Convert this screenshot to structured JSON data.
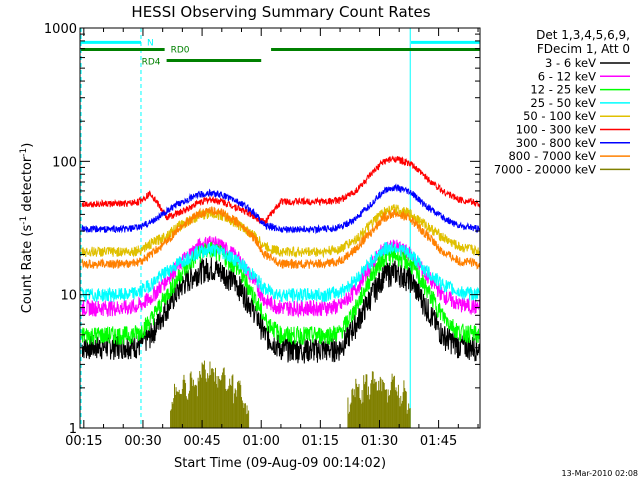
{
  "chart_data": {
    "type": "line",
    "title": "HESSI Observing Summary Count Rates",
    "xlabel": "Start Time (09-Aug-09 00:14:02)",
    "ylabel_parts": [
      "Count Rate (s",
      "-1",
      " detector",
      "-1",
      ")"
    ],
    "y_scale": "log",
    "ylim": [
      1,
      1000
    ],
    "xlim_min": [
      14.03,
      115.5
    ],
    "grid": false,
    "legend_position": "top-right, outside plot",
    "y_ticks": [
      {
        "value": 1,
        "label": "1"
      },
      {
        "value": 10,
        "label": "10"
      },
      {
        "value": 100,
        "label": "100"
      },
      {
        "value": 1000,
        "label": "1000"
      }
    ],
    "x_ticks": [
      {
        "value": 15,
        "label": "00:15"
      },
      {
        "value": 30,
        "label": "00:30"
      },
      {
        "value": 45,
        "label": "00:45"
      },
      {
        "value": 60,
        "label": "01:00"
      },
      {
        "value": 75,
        "label": "01:15"
      },
      {
        "value": 90,
        "label": "01:30"
      },
      {
        "value": 105,
        "label": "01:45"
      }
    ],
    "legend_header": [
      "Det 1,3,4,5,6,9,",
      "FDecim 1, Att 0"
    ],
    "series": [
      {
        "name": "3 - 6 keV",
        "color": "#000000",
        "x": [
          14.5,
          20,
          26,
          29,
          32,
          36,
          40,
          44,
          47,
          50,
          54,
          58,
          61,
          65,
          70,
          76,
          80,
          84,
          88,
          91,
          94,
          98,
          102,
          106,
          110,
          115.5
        ],
        "values": [
          4.1,
          4.1,
          4.2,
          4.2,
          5.0,
          8.0,
          12,
          15,
          16,
          15,
          12,
          8,
          5.0,
          4.0,
          3.9,
          3.9,
          4.0,
          6.0,
          10,
          14,
          15,
          13,
          8,
          5.0,
          4.2,
          4.0
        ]
      },
      {
        "name": "6 - 12 keV",
        "color": "#ff00ff",
        "x": [
          14.5,
          20,
          26,
          29,
          32,
          36,
          40,
          44,
          47,
          50,
          54,
          58,
          61,
          65,
          70,
          76,
          80,
          84,
          88,
          91,
          94,
          98,
          102,
          106,
          110,
          115.5
        ],
        "values": [
          8.0,
          8.0,
          8.0,
          8.3,
          9.5,
          13,
          18,
          23,
          25,
          23,
          19,
          13,
          9.0,
          8.0,
          8.0,
          8.0,
          8.2,
          11,
          17,
          22,
          23,
          20,
          14,
          10,
          8.5,
          8.0
        ]
      },
      {
        "name": "12 - 25 keV",
        "color": "#00ff00",
        "x": [
          14.5,
          20,
          26,
          29,
          32,
          36,
          40,
          44,
          47,
          50,
          54,
          58,
          61,
          65,
          70,
          76,
          80,
          84,
          88,
          91,
          94,
          98,
          102,
          106,
          110,
          115.5
        ],
        "values": [
          5.0,
          5.0,
          5.0,
          5.2,
          6.5,
          10,
          15,
          20,
          22,
          20,
          16,
          10,
          6.5,
          5.0,
          5.0,
          5.0,
          5.2,
          8.0,
          14,
          19,
          20,
          17,
          11,
          7.0,
          5.3,
          5.0
        ]
      },
      {
        "name": "25 - 50 keV",
        "color": "#00ffff",
        "x": [
          14.5,
          20,
          26,
          29,
          32,
          36,
          40,
          44,
          47,
          50,
          54,
          58,
          61,
          65,
          70,
          76,
          80,
          84,
          88,
          91,
          94,
          98,
          102,
          106,
          110,
          115.5
        ],
        "values": [
          10,
          10,
          10,
          10.5,
          12,
          15,
          18,
          21,
          22,
          21,
          18,
          14,
          11,
          10,
          10,
          10,
          10.5,
          13,
          18,
          22,
          23,
          20,
          15,
          12,
          10.5,
          10
        ]
      },
      {
        "name": "50 - 100 keV",
        "color": "#e0c000",
        "x": [
          14.5,
          20,
          26,
          29,
          32,
          36,
          40,
          44,
          47,
          50,
          54,
          58,
          61,
          65,
          70,
          76,
          80,
          84,
          88,
          91,
          94,
          98,
          102,
          106,
          110,
          115.5
        ],
        "values": [
          21,
          21,
          21,
          21.5,
          24,
          28,
          34,
          39,
          41,
          39,
          34,
          28,
          23,
          21,
          21,
          21,
          22,
          26,
          34,
          42,
          44,
          40,
          33,
          27,
          23,
          21
        ]
      },
      {
        "name": "100 - 300 keV",
        "color": "#ff0000",
        "x": [
          14.5,
          20,
          26,
          29,
          32,
          36,
          40,
          44,
          47,
          50,
          54,
          58,
          61,
          65,
          70,
          76,
          80,
          84,
          88,
          91,
          94,
          98,
          102,
          106,
          110,
          115.5
        ],
        "values": [
          48,
          48,
          48,
          50,
          58,
          38,
          42,
          49,
          52,
          50,
          45,
          39,
          35,
          50,
          50,
          50,
          51,
          60,
          80,
          100,
          105,
          95,
          75,
          60,
          52,
          48
        ]
      },
      {
        "name": "300 - 800 keV",
        "color": "#0000ff",
        "x": [
          14.5,
          20,
          26,
          29,
          32,
          36,
          40,
          44,
          47,
          50,
          54,
          58,
          61,
          65,
          70,
          76,
          80,
          84,
          88,
          91,
          94,
          98,
          102,
          106,
          110,
          115.5
        ],
        "values": [
          31,
          31,
          31,
          32,
          35,
          42,
          50,
          56,
          58,
          56,
          50,
          42,
          33,
          31,
          31,
          31,
          32,
          37,
          48,
          60,
          64,
          58,
          46,
          38,
          33,
          31
        ]
      },
      {
        "name": "800 - 7000 keV",
        "color": "#ff8000",
        "x": [
          14.5,
          20,
          26,
          29,
          32,
          36,
          40,
          44,
          47,
          50,
          54,
          58,
          61,
          65,
          70,
          76,
          80,
          84,
          88,
          91,
          94,
          98,
          102,
          106,
          110,
          115.5
        ],
        "values": [
          17,
          17,
          17,
          17.5,
          20,
          25,
          33,
          40,
          43,
          41,
          35,
          27,
          20,
          17,
          17,
          17,
          18,
          22,
          30,
          38,
          41,
          37,
          28,
          21,
          18,
          17
        ]
      },
      {
        "name": "7000 - 20000 keV",
        "color": "#808000",
        "x": [
          37,
          38,
          39,
          40,
          41,
          42,
          43,
          44,
          45,
          46,
          47,
          48,
          49,
          50,
          51,
          52,
          53,
          54,
          55,
          56,
          82,
          83,
          84,
          85,
          86,
          87,
          88,
          89,
          90,
          91,
          92,
          93,
          94,
          95,
          96,
          97
        ],
        "values": [
          1.5,
          2.0,
          1.8,
          2.2,
          1.7,
          2.4,
          2.0,
          2.6,
          2.9,
          2.3,
          2.9,
          2.5,
          2.2,
          2.6,
          1.9,
          2.3,
          1.8,
          2.1,
          1.6,
          1.4,
          1.5,
          1.8,
          2.1,
          1.7,
          2.3,
          1.9,
          2.4,
          2.0,
          2.2,
          2.1,
          1.8,
          2.3,
          1.9,
          1.7,
          2.0,
          1.5
        ]
      }
    ],
    "annotations": [
      {
        "label": "N",
        "color": "#00ffff",
        "segments": [
          [
            14.3,
            29.5
          ],
          [
            98,
            115.5
          ]
        ],
        "level": 780
      },
      {
        "label": "RD0",
        "color": "#008000",
        "segments": [
          [
            14.3,
            35.5
          ],
          [
            62.5,
            115.5
          ]
        ],
        "level": 690
      },
      {
        "label": "RD4",
        "color": "#008000",
        "segments": [
          [
            36,
            60
          ]
        ],
        "level": 570
      }
    ],
    "vlines_dashed": [
      14.3,
      29.5,
      115.5
    ],
    "vlines_solid": [
      97.8
    ],
    "attenuator_jumps": [
      36,
      61.5
    ]
  },
  "footer": {
    "date": "13-Mar-2010 02:08"
  }
}
